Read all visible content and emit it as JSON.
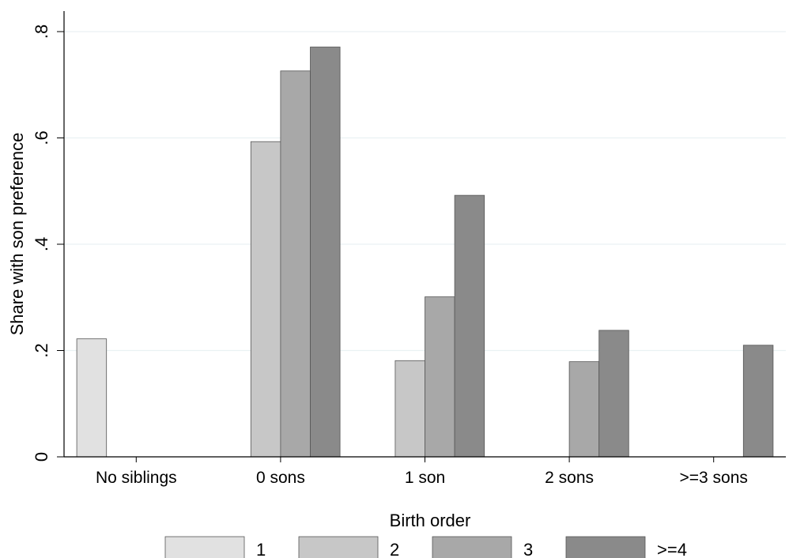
{
  "chart_data": {
    "type": "bar",
    "title": "",
    "xlabel": "",
    "ylabel": "Share with son preference",
    "ylim": [
      0,
      0.8
    ],
    "yticks": [
      {
        "value": 0,
        "label": "0"
      },
      {
        "value": 0.2,
        "label": ".2"
      },
      {
        "value": 0.4,
        "label": ".4"
      },
      {
        "value": 0.6,
        "label": ".6"
      },
      {
        "value": 0.8,
        "label": ".8"
      }
    ],
    "grid": true,
    "categories": [
      "No siblings",
      "0 sons",
      "1 son",
      "2 sons",
      ">=3 sons"
    ],
    "legend": {
      "title": "Birth order",
      "placement": "bottom"
    },
    "series": [
      {
        "name": "1",
        "color": "#e1e1e1",
        "values": [
          0.222,
          null,
          null,
          null,
          null
        ]
      },
      {
        "name": "2",
        "color": "#c7c7c7",
        "values": [
          null,
          0.593,
          0.181,
          null,
          null
        ]
      },
      {
        "name": "3",
        "color": "#a8a8a8",
        "values": [
          null,
          0.726,
          0.301,
          0.179,
          null
        ]
      },
      {
        "name": ">=4",
        "color": "#8a8a8a",
        "values": [
          null,
          0.771,
          0.492,
          0.238,
          0.21
        ]
      }
    ]
  }
}
